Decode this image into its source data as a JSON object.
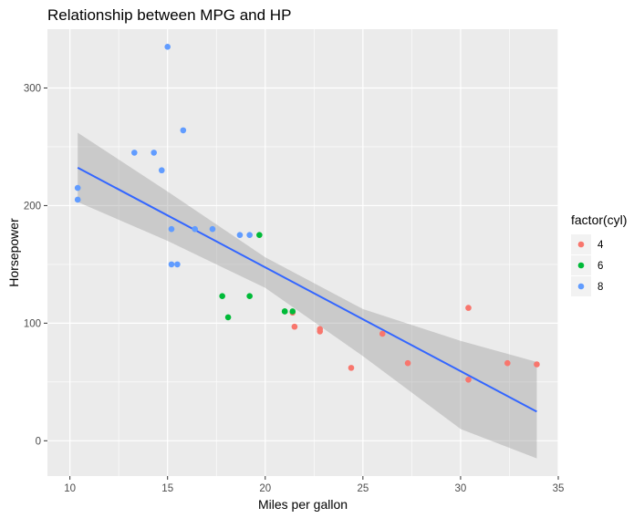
{
  "chart_data": {
    "type": "scatter",
    "title": "Relationship between MPG and HP",
    "xlabel": "Miles per gallon",
    "ylabel": "Horsepower",
    "xlim": [
      8.85,
      35.0
    ],
    "ylim": [
      -30,
      350
    ],
    "x_ticks": [
      10,
      15,
      20,
      25,
      30,
      35
    ],
    "y_ticks": [
      0,
      100,
      200,
      300
    ],
    "grid": true,
    "legend": {
      "title": "factor(cyl)",
      "placement": "right",
      "entries": [
        {
          "label": "4",
          "color": "#F8766D"
        },
        {
          "label": "6",
          "color": "#00BA38"
        },
        {
          "label": "8",
          "color": "#619CFF"
        }
      ]
    },
    "series": [
      {
        "name": "4",
        "color": "#F8766D",
        "points": [
          [
            22.8,
            93
          ],
          [
            24.4,
            62
          ],
          [
            22.8,
            95
          ],
          [
            32.4,
            66
          ],
          [
            30.4,
            52
          ],
          [
            33.9,
            65
          ],
          [
            21.5,
            97
          ],
          [
            27.3,
            66
          ],
          [
            26.0,
            91
          ],
          [
            30.4,
            113
          ],
          [
            21.4,
            109
          ]
        ]
      },
      {
        "name": "6",
        "color": "#00BA38",
        "points": [
          [
            21.0,
            110
          ],
          [
            21.0,
            110
          ],
          [
            21.4,
            110
          ],
          [
            18.1,
            105
          ],
          [
            19.2,
            123
          ],
          [
            17.8,
            123
          ],
          [
            19.7,
            175
          ]
        ]
      },
      {
        "name": "8",
        "color": "#619CFF",
        "points": [
          [
            18.7,
            175
          ],
          [
            14.3,
            245
          ],
          [
            16.4,
            180
          ],
          [
            17.3,
            180
          ],
          [
            15.2,
            180
          ],
          [
            10.4,
            205
          ],
          [
            10.4,
            215
          ],
          [
            14.7,
            230
          ],
          [
            15.5,
            150
          ],
          [
            15.2,
            150
          ],
          [
            13.3,
            245
          ],
          [
            19.2,
            175
          ],
          [
            15.8,
            264
          ],
          [
            15.0,
            335
          ]
        ]
      }
    ],
    "regression": {
      "method": "lm",
      "color": "#3366FF",
      "intercept": 324.08,
      "slope": -8.83,
      "x_range": [
        10.4,
        33.9
      ],
      "band_color": "#999999",
      "band": [
        [
          10.4,
          262,
          203
        ],
        [
          15.0,
          212,
          170
        ],
        [
          20.0,
          156,
          130
        ],
        [
          25.0,
          112,
          72
        ],
        [
          30.0,
          85,
          10
        ],
        [
          33.9,
          67,
          -15
        ]
      ]
    }
  }
}
